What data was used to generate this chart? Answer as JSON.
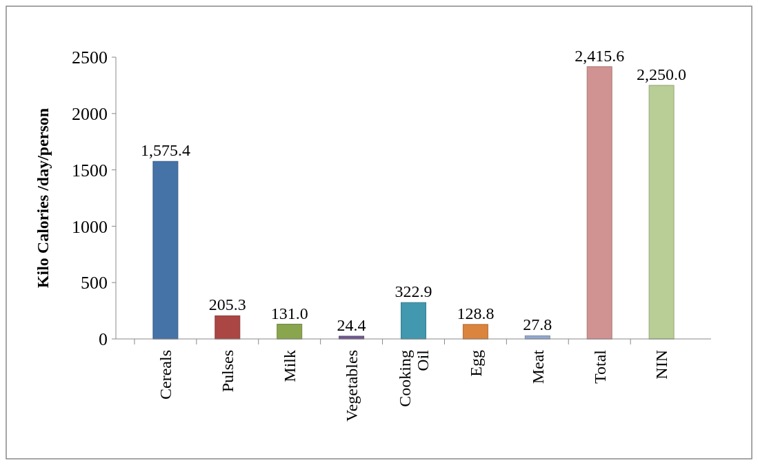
{
  "chart_data": {
    "type": "bar",
    "ylabel": "Kilo Calories /day/person",
    "categories": [
      "Cereals",
      "Pulses",
      "Milk",
      "Vegetables",
      "Cooking Oil",
      "Egg",
      "Meat",
      "Total",
      "NIN"
    ],
    "values": [
      1575.4,
      205.3,
      131.0,
      24.4,
      322.9,
      128.8,
      27.8,
      2415.6,
      2250.0
    ],
    "value_labels": [
      "1,575.4",
      "205.3",
      "131.0",
      "24.4",
      "322.9",
      "128.8",
      "27.8",
      "2,415.6",
      "2,250.0"
    ],
    "colors": [
      "#4572a7",
      "#aa4643",
      "#89a54e",
      "#71588f",
      "#4198af",
      "#db843d",
      "#93a9cf",
      "#d09392",
      "#b9cd96"
    ],
    "ylim": [
      0,
      2500
    ],
    "yticks": [
      0,
      500,
      1000,
      1500,
      2000,
      2500
    ],
    "grid": false
  }
}
